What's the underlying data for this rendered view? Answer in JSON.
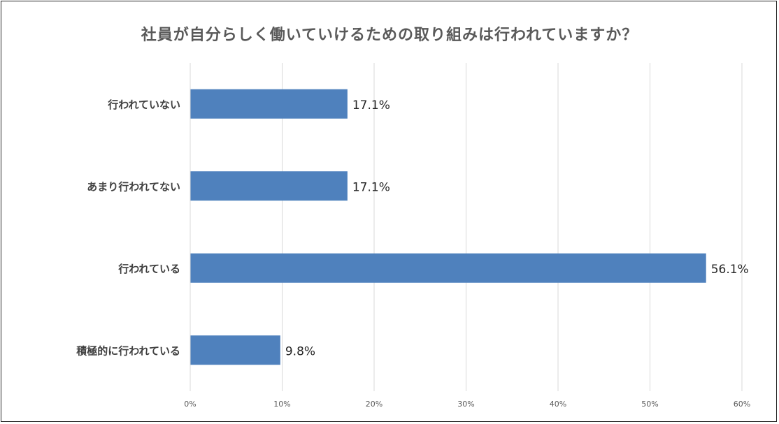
{
  "chart_data": {
    "type": "bar",
    "orientation": "horizontal",
    "title": "社員が自分らしく働いていけるための取り組みは行われていますか？",
    "categories": [
      "行われていない",
      "あまり行われてない",
      "行われている",
      "積極的に行われている"
    ],
    "values": [
      17.1,
      17.1,
      56.1,
      9.8
    ],
    "value_labels": [
      "17.1%",
      "17.1%",
      "56.1%",
      "9.8%"
    ],
    "xlim": [
      0,
      60
    ],
    "x_ticks": [
      0,
      10,
      20,
      30,
      40,
      50,
      60
    ],
    "x_tick_labels": [
      "0%",
      "10%",
      "20%",
      "30%",
      "40%",
      "50%",
      "60%"
    ],
    "grid": true,
    "legend": "none",
    "bar_color": "#4f81bd",
    "grid_color": "#d9d9d9",
    "title_color": "#595959",
    "category_label_color": "#404040",
    "value_label_color": "#262626",
    "tick_label_color": "#595959"
  }
}
